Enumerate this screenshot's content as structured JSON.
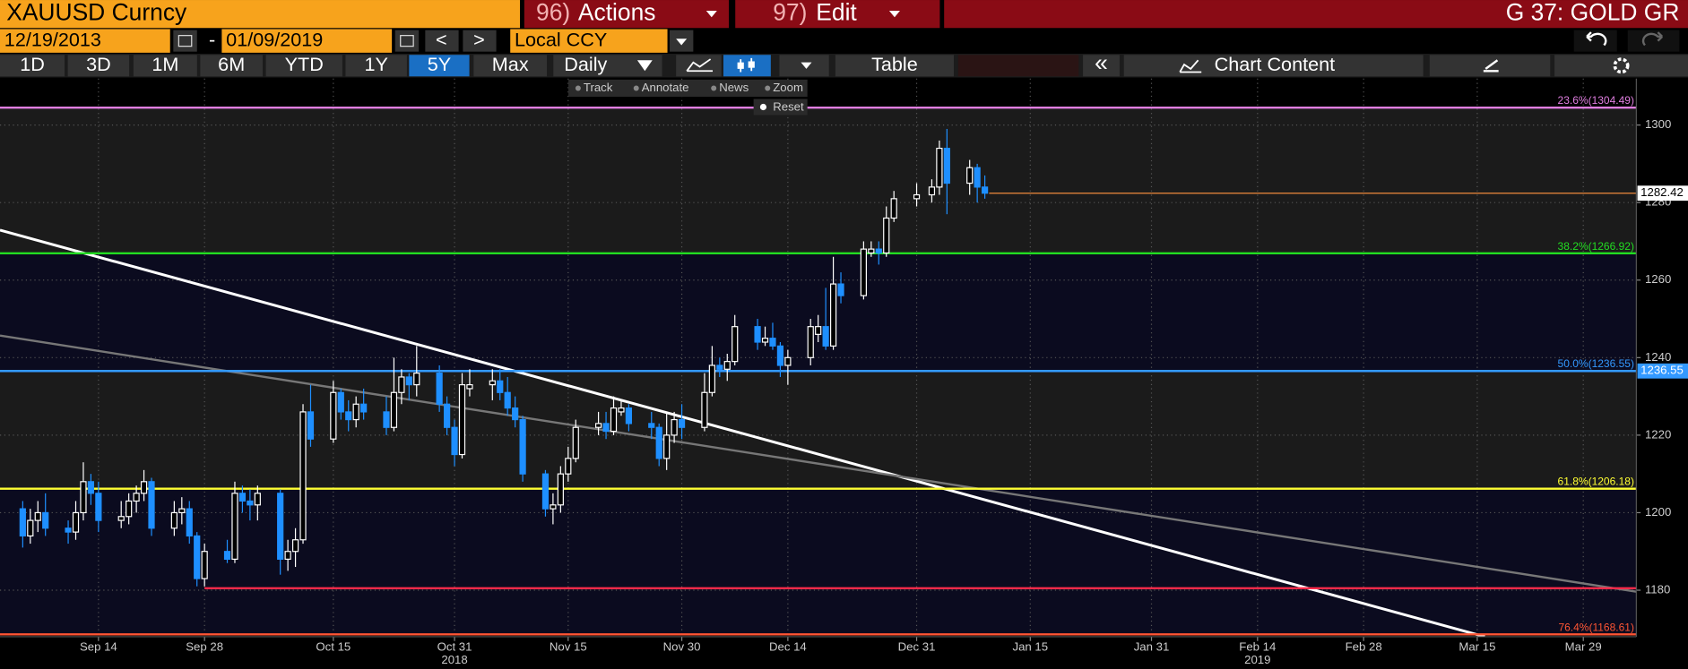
{
  "header": {
    "security": "XAUUSD Curncy",
    "actions": {
      "num": "96)",
      "label": "Actions"
    },
    "edit": {
      "num": "97)",
      "label": "Edit"
    },
    "chart_id": "G 37: GOLD GR"
  },
  "controls": {
    "start_date": "12/19/2013",
    "date_sep": "-",
    "end_date": "01/09/2019",
    "prev": "<",
    "next": ">",
    "currency": "Local CCY"
  },
  "periods": [
    "1D",
    "3D",
    "1M",
    "6M",
    "YTD",
    "1Y",
    "5Y",
    "Max"
  ],
  "selected_period": "5Y",
  "frequency": "Daily",
  "table": "Table",
  "collapse": "«",
  "chart_content": "Chart Content",
  "chart_tools": [
    "Track",
    "Annotate",
    "News",
    "Zoom"
  ],
  "reset": "Reset",
  "chart_data": {
    "type": "candlestick",
    "xlim": [
      "2018-09-01",
      "2019-04-05"
    ],
    "ylim": [
      1168,
      1312
    ],
    "yticks": [
      1180,
      1200,
      1220,
      1240,
      1260,
      1280,
      1300
    ],
    "xticks": [
      {
        "value": "2018-09-14",
        "label": "Sep 14"
      },
      {
        "value": "2018-09-28",
        "label": "Sep 28"
      },
      {
        "value": "2018-10-15",
        "label": "Oct 15"
      },
      {
        "value": "2018-10-31",
        "label": "Oct 31"
      },
      {
        "value": "2018-11-15",
        "label": "Nov 15"
      },
      {
        "value": "2018-11-30",
        "label": "Nov 30"
      },
      {
        "value": "2018-12-14",
        "label": "Dec 14"
      },
      {
        "value": "2018-12-31",
        "label": "Dec 31"
      },
      {
        "value": "2019-01-15",
        "label": "Jan 15"
      },
      {
        "value": "2019-01-31",
        "label": "Jan 31"
      },
      {
        "value": "2019-02-14",
        "label": "Feb 14"
      },
      {
        "value": "2019-02-28",
        "label": "Feb 28"
      },
      {
        "value": "2019-03-15",
        "label": "Mar 15"
      },
      {
        "value": "2019-03-29",
        "label": "Mar 29"
      }
    ],
    "year_labels": [
      {
        "value": "2018-10-31",
        "label": "2018"
      },
      {
        "value": "2019-02-14",
        "label": "2019"
      }
    ],
    "grid": true,
    "series": [
      {
        "up_color": "#ffffff",
        "down_color": "#1e8fff",
        "x": [
          "2018-09-04",
          "2018-09-05",
          "2018-09-06",
          "2018-09-07",
          "2018-09-10",
          "2018-09-11",
          "2018-09-12",
          "2018-09-13",
          "2018-09-14",
          "2018-09-17",
          "2018-09-18",
          "2018-09-19",
          "2018-09-20",
          "2018-09-21",
          "2018-09-24",
          "2018-09-25",
          "2018-09-26",
          "2018-09-27",
          "2018-09-28",
          "2018-10-01",
          "2018-10-02",
          "2018-10-03",
          "2018-10-04",
          "2018-10-05",
          "2018-10-08",
          "2018-10-09",
          "2018-10-10",
          "2018-10-11",
          "2018-10-12",
          "2018-10-15",
          "2018-10-16",
          "2018-10-17",
          "2018-10-18",
          "2018-10-19",
          "2018-10-22",
          "2018-10-23",
          "2018-10-24",
          "2018-10-25",
          "2018-10-26",
          "2018-10-29",
          "2018-10-30",
          "2018-10-31",
          "2018-11-01",
          "2018-11-02",
          "2018-11-05",
          "2018-11-06",
          "2018-11-07",
          "2018-11-08",
          "2018-11-09",
          "2018-11-12",
          "2018-11-13",
          "2018-11-14",
          "2018-11-15",
          "2018-11-16",
          "2018-11-19",
          "2018-11-20",
          "2018-11-21",
          "2018-11-22",
          "2018-11-23",
          "2018-11-26",
          "2018-11-27",
          "2018-11-28",
          "2018-11-29",
          "2018-11-30",
          "2018-12-03",
          "2018-12-04",
          "2018-12-05",
          "2018-12-06",
          "2018-12-07",
          "2018-12-10",
          "2018-12-11",
          "2018-12-12",
          "2018-12-13",
          "2018-12-14",
          "2018-12-17",
          "2018-12-18",
          "2018-12-19",
          "2018-12-20",
          "2018-12-21",
          "2018-12-24",
          "2018-12-25",
          "2018-12-26",
          "2018-12-27",
          "2018-12-28",
          "2018-12-31",
          "2019-01-02",
          "2019-01-03",
          "2019-01-04",
          "2019-01-07",
          "2019-01-08",
          "2019-01-09"
        ],
        "ohlc": [
          [
            1201,
            1203,
            1191,
            1194
          ],
          [
            1194,
            1201,
            1192,
            1198
          ],
          [
            1198,
            1203,
            1195,
            1200
          ],
          [
            1200,
            1205,
            1194,
            1196
          ],
          [
            1196,
            1198,
            1192,
            1195
          ],
          [
            1195,
            1203,
            1193,
            1200
          ],
          [
            1200,
            1213,
            1198,
            1208
          ],
          [
            1208,
            1210,
            1202,
            1205
          ],
          [
            1205,
            1208,
            1195,
            1198
          ],
          [
            1198,
            1203,
            1196,
            1199
          ],
          [
            1199,
            1205,
            1197,
            1203
          ],
          [
            1203,
            1207,
            1200,
            1205
          ],
          [
            1205,
            1211,
            1203,
            1208
          ],
          [
            1208,
            1209,
            1194,
            1196
          ],
          [
            1196,
            1203,
            1194,
            1200
          ],
          [
            1200,
            1204,
            1197,
            1201
          ],
          [
            1201,
            1203,
            1192,
            1194
          ],
          [
            1194,
            1195,
            1181,
            1183
          ],
          [
            1183,
            1192,
            1181,
            1190
          ],
          [
            1190,
            1193,
            1187,
            1188
          ],
          [
            1188,
            1208,
            1187,
            1205
          ],
          [
            1205,
            1207,
            1200,
            1203
          ],
          [
            1203,
            1206,
            1198,
            1202
          ],
          [
            1202,
            1207,
            1198,
            1205
          ],
          [
            1205,
            1206,
            1184,
            1188
          ],
          [
            1188,
            1193,
            1185,
            1190
          ],
          [
            1190,
            1196,
            1186,
            1193
          ],
          [
            1193,
            1228,
            1192,
            1226
          ],
          [
            1226,
            1233,
            1217,
            1219
          ],
          [
            1219,
            1234,
            1218,
            1231
          ],
          [
            1231,
            1232,
            1224,
            1226
          ],
          [
            1226,
            1229,
            1221,
            1224
          ],
          [
            1224,
            1230,
            1222,
            1228
          ],
          [
            1228,
            1232,
            1224,
            1226
          ],
          [
            1226,
            1230,
            1220,
            1222
          ],
          [
            1222,
            1240,
            1221,
            1231
          ],
          [
            1231,
            1237,
            1228,
            1235
          ],
          [
            1235,
            1236,
            1229,
            1233
          ],
          [
            1233,
            1243,
            1230,
            1236
          ],
          [
            1236,
            1238,
            1226,
            1228
          ],
          [
            1228,
            1230,
            1220,
            1222
          ],
          [
            1222,
            1224,
            1212,
            1215
          ],
          [
            1215,
            1236,
            1214,
            1233
          ],
          [
            1232,
            1237,
            1230,
            1233
          ],
          [
            1233,
            1237,
            1229,
            1234
          ],
          [
            1234,
            1237,
            1229,
            1231
          ],
          [
            1231,
            1235,
            1225,
            1227
          ],
          [
            1227,
            1230,
            1222,
            1224
          ],
          [
            1224,
            1225,
            1208,
            1210
          ],
          [
            1210,
            1211,
            1199,
            1201
          ],
          [
            1201,
            1205,
            1197,
            1202
          ],
          [
            1202,
            1212,
            1200,
            1210
          ],
          [
            1210,
            1217,
            1208,
            1214
          ],
          [
            1214,
            1224,
            1213,
            1222
          ],
          [
            1222,
            1226,
            1220,
            1223
          ],
          [
            1223,
            1226,
            1219,
            1221
          ],
          [
            1221,
            1230,
            1220,
            1227
          ],
          [
            1226,
            1229,
            1225,
            1227
          ],
          [
            1227,
            1228,
            1221,
            1223
          ],
          [
            1223,
            1226,
            1219,
            1222
          ],
          [
            1222,
            1223,
            1212,
            1214
          ],
          [
            1214,
            1226,
            1211,
            1220
          ],
          [
            1220,
            1226,
            1218,
            1224
          ],
          [
            1224,
            1228,
            1219,
            1222
          ],
          [
            1222,
            1236,
            1221,
            1231
          ],
          [
            1231,
            1243,
            1230,
            1238
          ],
          [
            1238,
            1240,
            1235,
            1237
          ],
          [
            1237,
            1241,
            1234,
            1239
          ],
          [
            1239,
            1251,
            1238,
            1248
          ],
          [
            1248,
            1250,
            1242,
            1244
          ],
          [
            1244,
            1248,
            1243,
            1245
          ],
          [
            1245,
            1249,
            1242,
            1243
          ],
          [
            1243,
            1244,
            1235,
            1238
          ],
          [
            1238,
            1242,
            1233,
            1240
          ],
          [
            1240,
            1250,
            1238,
            1248
          ],
          [
            1246,
            1251,
            1244,
            1248
          ],
          [
            1248,
            1258,
            1242,
            1243
          ],
          [
            1243,
            1266,
            1242,
            1259
          ],
          [
            1259,
            1262,
            1254,
            1256
          ],
          [
            1256,
            1270,
            1255,
            1268
          ],
          [
            1267,
            1270,
            1266,
            1268
          ],
          [
            1268,
            1270,
            1264,
            1267
          ],
          [
            1267,
            1279,
            1266,
            1276
          ],
          [
            1276,
            1283,
            1275,
            1281
          ],
          [
            1281,
            1285,
            1279,
            1282
          ],
          [
            1282,
            1286,
            1280,
            1284
          ],
          [
            1284,
            1296,
            1282,
            1294
          ],
          [
            1294,
            1299,
            1277,
            1285
          ],
          [
            1285,
            1291,
            1282,
            1289
          ],
          [
            1289,
            1290,
            1280,
            1284
          ],
          [
            1284,
            1287,
            1281,
            1282.42
          ]
        ]
      }
    ],
    "last_price_color": "#f08a3c",
    "fib_levels": [
      {
        "label": "23.6%(1304.49)",
        "value": 1304.49,
        "color": "#e07ee0"
      },
      {
        "label": "38.2%(1266.92)",
        "value": 1266.92,
        "color": "#22dd22"
      },
      {
        "label": "50.0%(1236.55)",
        "value": 1236.55,
        "color": "#3399ff",
        "axis_badge": true
      },
      {
        "label": "61.8%(1206.18)",
        "value": 1206.18,
        "color": "#ffff33"
      },
      {
        "label": "76.4%(1168.61)",
        "value": 1168.61,
        "color": "#ff5533"
      }
    ],
    "hlines": [
      {
        "value": 1180.5,
        "start": "2018-09-28",
        "color": "#ff2a4a"
      }
    ],
    "trendlines": [
      {
        "points": [
          [
            "2018-09-01",
            1272.9
          ],
          [
            "2019-03-16",
            1168
          ]
        ],
        "color": "#ffffff",
        "width": 2.5
      },
      {
        "points": [
          [
            "2018-09-01",
            1245.7
          ],
          [
            "2019-04-05",
            1179.6
          ]
        ],
        "color": "#777777",
        "width": 2
      }
    ]
  }
}
